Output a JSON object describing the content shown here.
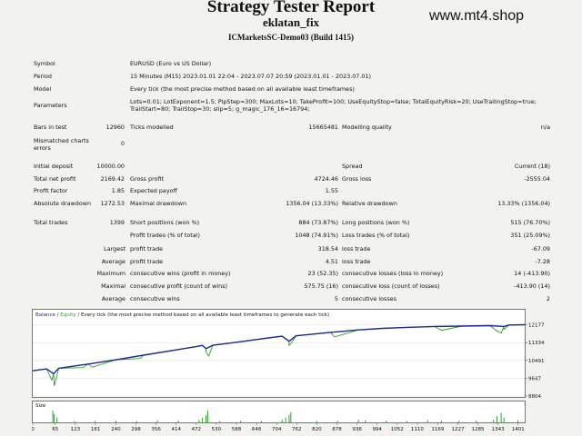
{
  "header": {
    "title": "Strategy Tester Report",
    "ea_name": "eklatan_fix",
    "server": "ICMarketsSC-Demo03 (Build 1415)",
    "watermark": "www.mt4.shop"
  },
  "rows": {
    "symbol": {
      "label": "Symbol",
      "value": "EURUSD (Euro vs US Dollar)"
    },
    "period": {
      "label": "Period",
      "value": "15 Minutes (M15) 2023.01.01 22:04 - 2023.07.07 20:59 (2023.01.01 - 2023.07.01)"
    },
    "model": {
      "label": "Model",
      "value": "Every tick (the most precise method based on all available least timeframes)"
    },
    "parameters": {
      "label": "Parameters",
      "value": "Lots=0.01; LotExponent=1.5; PipStep=300; MaxLots=10; TakeProfit=100; UseEquityStop=false; TotalEquityRisk=20; UseTrailingStop=true; TrailStart=80; TrailStop=30; slip=5; g_magic_176_16=16794;"
    },
    "bars": {
      "label": "Bars in test",
      "value": "12960",
      "label2": "Ticks modelled",
      "value2": "15665481",
      "label3": "Modelling quality",
      "value3": "n/a"
    },
    "mismatch": {
      "label": "Mismatched charts errors",
      "value": "0"
    },
    "deposit": {
      "label": "Initial deposit",
      "value": "10000.00",
      "label3": "Spread",
      "value3": "Current (18)"
    },
    "net": {
      "label": "Total net profit",
      "value": "2169.42",
      "label2": "Gross profit",
      "value2": "4724.46",
      "label3": "Gross loss",
      "value3": "-2555.04"
    },
    "pf": {
      "label": "Profit factor",
      "value": "1.85",
      "label2": "Expected payoff",
      "value2": "1.55"
    },
    "dd": {
      "label": "Absolute drawdown",
      "value": "1272.53",
      "label2": "Maximal drawdown",
      "value2": "1356.04 (13.33%)",
      "label3": "Relative drawdown",
      "value3": "13.33% (1356.04)"
    },
    "trades": {
      "label": "Total trades",
      "value": "1399",
      "label2": "Short positions (won %)",
      "value2": "884 (73.87%)",
      "label3": "Long positions (won %)",
      "value3": "515 (76.70%)"
    },
    "ptrades": {
      "label2": "Profit trades (% of total)",
      "value2": "1048 (74.91%)",
      "label3": "Loss trades (% of total)",
      "value3": "351 (25.09%)"
    },
    "largest": {
      "prefix": "Largest",
      "label2": "profit trade",
      "value2": "318.54",
      "label3": "loss trade",
      "value3": "-67.09"
    },
    "average": {
      "prefix": "Average",
      "label2": "profit trade",
      "value2": "4.51",
      "label3": "loss trade",
      "value3": "-7.28"
    },
    "maxcons": {
      "prefix": "Maximum",
      "label2": "consecutive wins (profit in money)",
      "value2": "23 (52.35)",
      "label3": "consecutive losses (loss in money)",
      "value3": "14 (-413.90)"
    },
    "maximal": {
      "prefix": "Maximal",
      "label2": "consecutive profit (count of wins)",
      "value2": "575.75 (16)",
      "label3": "consecutive loss (count of losses)",
      "value3": "-413.90 (14)"
    },
    "avgcons": {
      "prefix": "Average",
      "label2": "consecutive wins",
      "value2": "5",
      "label3": "consecutive losses",
      "value3": "2"
    }
  },
  "chart_data": {
    "type": "line",
    "legend": {
      "balance": "Balance",
      "sep": " / ",
      "equity": "Equity",
      "rest": " / Every tick (the most precise method based on all available least timeframes to generate each tick)"
    },
    "size_label": "Size",
    "y_ticks": [
      12177,
      11334,
      10491,
      9647,
      8804
    ],
    "ylim": [
      8804,
      12420
    ],
    "xlim": [
      0,
      1420
    ],
    "x_ticks": [
      0,
      65,
      123,
      181,
      240,
      298,
      356,
      414,
      472,
      530,
      588,
      646,
      704,
      762,
      820,
      878,
      936,
      994,
      1052,
      1110,
      1169,
      1227,
      1285,
      1343,
      1401
    ],
    "colors": {
      "balance": "#1b2a8c",
      "equity": "#2e9e2e",
      "volume": "#2e9e2e",
      "legend_balance": "#1b2a8c",
      "legend_equity": "#2e9e2e"
    },
    "balance": [
      [
        0,
        10000
      ],
      [
        40,
        10090
      ],
      [
        60,
        9860
      ],
      [
        75,
        10120
      ],
      [
        160,
        10320
      ],
      [
        240,
        10520
      ],
      [
        320,
        10740
      ],
      [
        400,
        10950
      ],
      [
        470,
        11140
      ],
      [
        490,
        11200
      ],
      [
        500,
        11050
      ],
      [
        520,
        11210
      ],
      [
        600,
        11380
      ],
      [
        680,
        11560
      ],
      [
        720,
        11640
      ],
      [
        740,
        11400
      ],
      [
        760,
        11660
      ],
      [
        860,
        11820
      ],
      [
        940,
        11940
      ],
      [
        1010,
        12010
      ],
      [
        1080,
        12060
      ],
      [
        1160,
        12100
      ],
      [
        1240,
        12120
      ],
      [
        1320,
        12140
      ],
      [
        1360,
        12100
      ],
      [
        1375,
        12170
      ],
      [
        1420,
        12185
      ]
    ],
    "equity_dips": [
      [
        55,
        9560
      ],
      [
        62,
        9290
      ],
      [
        70,
        9780
      ],
      [
        145,
        10150
      ],
      [
        172,
        10170
      ],
      [
        310,
        10580
      ],
      [
        500,
        10900
      ],
      [
        508,
        10700
      ],
      [
        740,
        11200
      ],
      [
        748,
        11350
      ],
      [
        870,
        11600
      ],
      [
        1180,
        11920
      ],
      [
        1340,
        11880
      ],
      [
        1352,
        11790
      ],
      [
        1360,
        11960
      ]
    ],
    "volume": [
      [
        58,
        0.85
      ],
      [
        62,
        0.6
      ],
      [
        70,
        0.35
      ],
      [
        120,
        0.1
      ],
      [
        180,
        0.1
      ],
      [
        240,
        0.12
      ],
      [
        300,
        0.1
      ],
      [
        360,
        0.15
      ],
      [
        420,
        0.12
      ],
      [
        480,
        0.18
      ],
      [
        490,
        0.35
      ],
      [
        500,
        0.55
      ],
      [
        505,
        0.9
      ],
      [
        540,
        0.1
      ],
      [
        600,
        0.12
      ],
      [
        660,
        0.1
      ],
      [
        720,
        0.2
      ],
      [
        730,
        0.35
      ],
      [
        740,
        0.55
      ],
      [
        745,
        0.75
      ],
      [
        820,
        0.1
      ],
      [
        880,
        0.12
      ],
      [
        940,
        0.2
      ],
      [
        960,
        0.15
      ],
      [
        1020,
        0.12
      ],
      [
        1080,
        0.1
      ],
      [
        1140,
        0.15
      ],
      [
        1180,
        0.12
      ],
      [
        1230,
        0.1
      ],
      [
        1280,
        0.12
      ],
      [
        1330,
        0.2
      ],
      [
        1340,
        0.45
      ],
      [
        1352,
        0.7
      ],
      [
        1360,
        0.35
      ],
      [
        1400,
        0.15
      ]
    ]
  }
}
